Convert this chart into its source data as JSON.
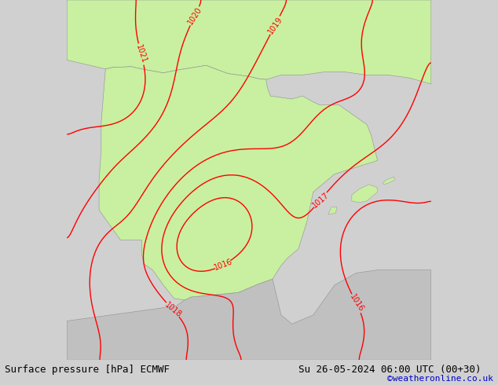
{
  "title_left": "Surface pressure [hPa] ECMWF",
  "title_right": "Su 26-05-2024 06:00 UTC (00+30)",
  "watermark": "©weatheronline.co.uk",
  "bg_color": "#d0d0d0",
  "land_color": "#c8f0a0",
  "sea_color": "#d0d0d0",
  "contour_color": "#ff0000",
  "contour_linewidth": 1.0,
  "contour_levels": [
    1016,
    1017,
    1018,
    1019,
    1020,
    1021
  ],
  "label_fontsize": 7,
  "footer_fontsize": 9,
  "watermark_fontsize": 8,
  "figsize": [
    6.34,
    4.9
  ],
  "dpi": 100,
  "lon_min": -11.0,
  "lon_max": 6.0,
  "lat_min": 34.0,
  "lat_max": 46.0
}
